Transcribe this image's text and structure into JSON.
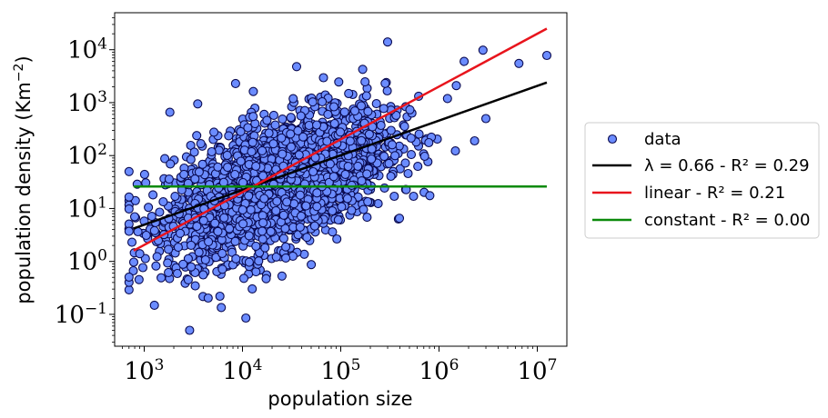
{
  "chart_data": {
    "type": "scatter",
    "xscale": "log",
    "yscale": "log",
    "xlabel": "population size",
    "ylabel": "population density (Km−2)",
    "xlim": [
      500,
      20000000
    ],
    "ylim": [
      0.025,
      50000
    ],
    "x_ticks": [
      {
        "value": 1000,
        "base": "10",
        "exp": "3"
      },
      {
        "value": 10000,
        "base": "10",
        "exp": "4"
      },
      {
        "value": 100000,
        "base": "10",
        "exp": "5"
      },
      {
        "value": 1000000,
        "base": "10",
        "exp": "6"
      },
      {
        "value": 10000000,
        "base": "10",
        "exp": "7"
      }
    ],
    "y_ticks": [
      {
        "value": 0.1,
        "base": "10",
        "exp": "−1"
      },
      {
        "value": 1,
        "base": "10",
        "exp": "0"
      },
      {
        "value": 10,
        "base": "10",
        "exp": "1"
      },
      {
        "value": 100,
        "base": "10",
        "exp": "2"
      },
      {
        "value": 1000,
        "base": "10",
        "exp": "3"
      },
      {
        "value": 10000,
        "base": "10",
        "exp": "4"
      }
    ],
    "series": [
      {
        "name": "data",
        "kind": "points",
        "color": "#6b8cff",
        "edge_color": "#0a0a50",
        "count": 2600,
        "cloud": {
          "center_log_x": 4.35,
          "center_log_y": 1.47,
          "sd_log_x": 0.55,
          "residual_sd_log_y": 0.58,
          "slope": 0.66,
          "min_x": 700,
          "max_x": 13000000
        },
        "outliers": [
          {
            "x": 2900,
            "y": 0.05
          },
          {
            "x": 8500,
            "y": 2300
          },
          {
            "x": 3500,
            "y": 950
          },
          {
            "x": 12500000,
            "y": 7800
          },
          {
            "x": 6500000,
            "y": 5500
          },
          {
            "x": 3000000,
            "y": 500
          },
          {
            "x": 2300000,
            "y": 190
          },
          {
            "x": 2800000,
            "y": 9800
          },
          {
            "x": 300000,
            "y": 14000
          },
          {
            "x": 350000,
            "y": 17
          },
          {
            "x": 550000,
            "y": 17
          },
          {
            "x": 1800000,
            "y": 6000
          },
          {
            "x": 1500000,
            "y": 2100
          },
          {
            "x": 900,
            "y": 1.4
          },
          {
            "x": 800,
            "y": 7
          },
          {
            "x": 750,
            "y": 2.3
          }
        ]
      },
      {
        "name": "λ = 0.66 - R² = 0.29",
        "kind": "line",
        "color": "#000000",
        "points": [
          {
            "x": 780,
            "y": 4.2
          },
          {
            "x": 12500000,
            "y": 2400
          }
        ]
      },
      {
        "name": "linear - R² = 0.21",
        "kind": "line",
        "color": "#e8141c",
        "points": [
          {
            "x": 780,
            "y": 1.6
          },
          {
            "x": 12500000,
            "y": 25000
          }
        ]
      },
      {
        "name": "constant - R² = 0.00",
        "kind": "line",
        "color": "#0b8a0b",
        "points": [
          {
            "x": 780,
            "y": 26
          },
          {
            "x": 12500000,
            "y": 26
          }
        ]
      }
    ],
    "legend": {
      "placement": "outside-right",
      "entries": [
        {
          "kind": "marker",
          "label": "data"
        },
        {
          "kind": "line",
          "label": "λ = 0.66 - R² = 0.29",
          "color": "#000000"
        },
        {
          "kind": "line",
          "label": "linear - R² = 0.21",
          "color": "#e8141c"
        },
        {
          "kind": "line",
          "label": "constant - R² = 0.00",
          "color": "#0b8a0b"
        }
      ]
    }
  }
}
